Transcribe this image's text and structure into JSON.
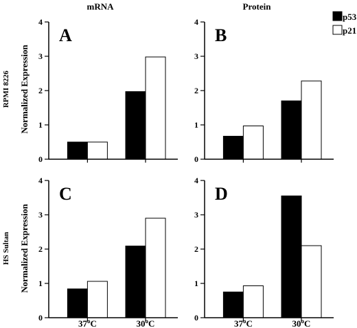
{
  "figure": {
    "columns": [
      "mRNA",
      "Protein"
    ],
    "rows": [
      "RPMI 8226",
      "HS Sultan"
    ],
    "ylabel": "Normalized Expression",
    "ylim": [
      0,
      4
    ],
    "yticks": [
      "0",
      "1",
      "2",
      "3",
      "4"
    ],
    "degree": "o",
    "categories": [
      {
        "label": "37",
        "sup": "o",
        "unit": "C"
      },
      {
        "label": "30",
        "sup": "o",
        "unit": "C"
      }
    ],
    "legend": [
      {
        "label": "p53",
        "color": "#000000"
      },
      {
        "label": "p21",
        "color": "#ffffff"
      }
    ],
    "colors": {
      "p53": "#000000",
      "p21": "#ffffff",
      "stroke": "#000000"
    }
  },
  "chart_data": [
    {
      "type": "bar",
      "panel": "A",
      "title": "mRNA",
      "row_label": "RPMI 8226",
      "ylabel": "Normalized Expression",
      "categories": [
        "37°C",
        "30°C"
      ],
      "series": [
        {
          "name": "p53",
          "values": [
            0.5,
            1.97
          ]
        },
        {
          "name": "p21",
          "values": [
            0.5,
            2.98
          ]
        }
      ],
      "ylim": [
        0,
        4
      ]
    },
    {
      "type": "bar",
      "panel": "B",
      "title": "Protein",
      "row_label": "RPMI 8226",
      "ylabel": "",
      "categories": [
        "37°C",
        "30°C"
      ],
      "series": [
        {
          "name": "p53",
          "values": [
            0.67,
            1.7
          ]
        },
        {
          "name": "p21",
          "values": [
            0.97,
            2.28
          ]
        }
      ],
      "ylim": [
        0,
        4
      ]
    },
    {
      "type": "bar",
      "panel": "C",
      "title": "",
      "row_label": "HS Sultan",
      "ylabel": "Normalized Expression",
      "categories": [
        "37°C",
        "30°C"
      ],
      "series": [
        {
          "name": "p53",
          "values": [
            0.84,
            2.09
          ]
        },
        {
          "name": "p21",
          "values": [
            1.06,
            2.9
          ]
        }
      ],
      "ylim": [
        0,
        4
      ]
    },
    {
      "type": "bar",
      "panel": "D",
      "title": "",
      "row_label": "HS Sultan",
      "ylabel": "",
      "categories": [
        "37°C",
        "30°C"
      ],
      "series": [
        {
          "name": "p53",
          "values": [
            0.75,
            3.55
          ]
        },
        {
          "name": "p21",
          "values": [
            0.93,
            2.1
          ]
        }
      ],
      "ylim": [
        0,
        4
      ]
    }
  ]
}
